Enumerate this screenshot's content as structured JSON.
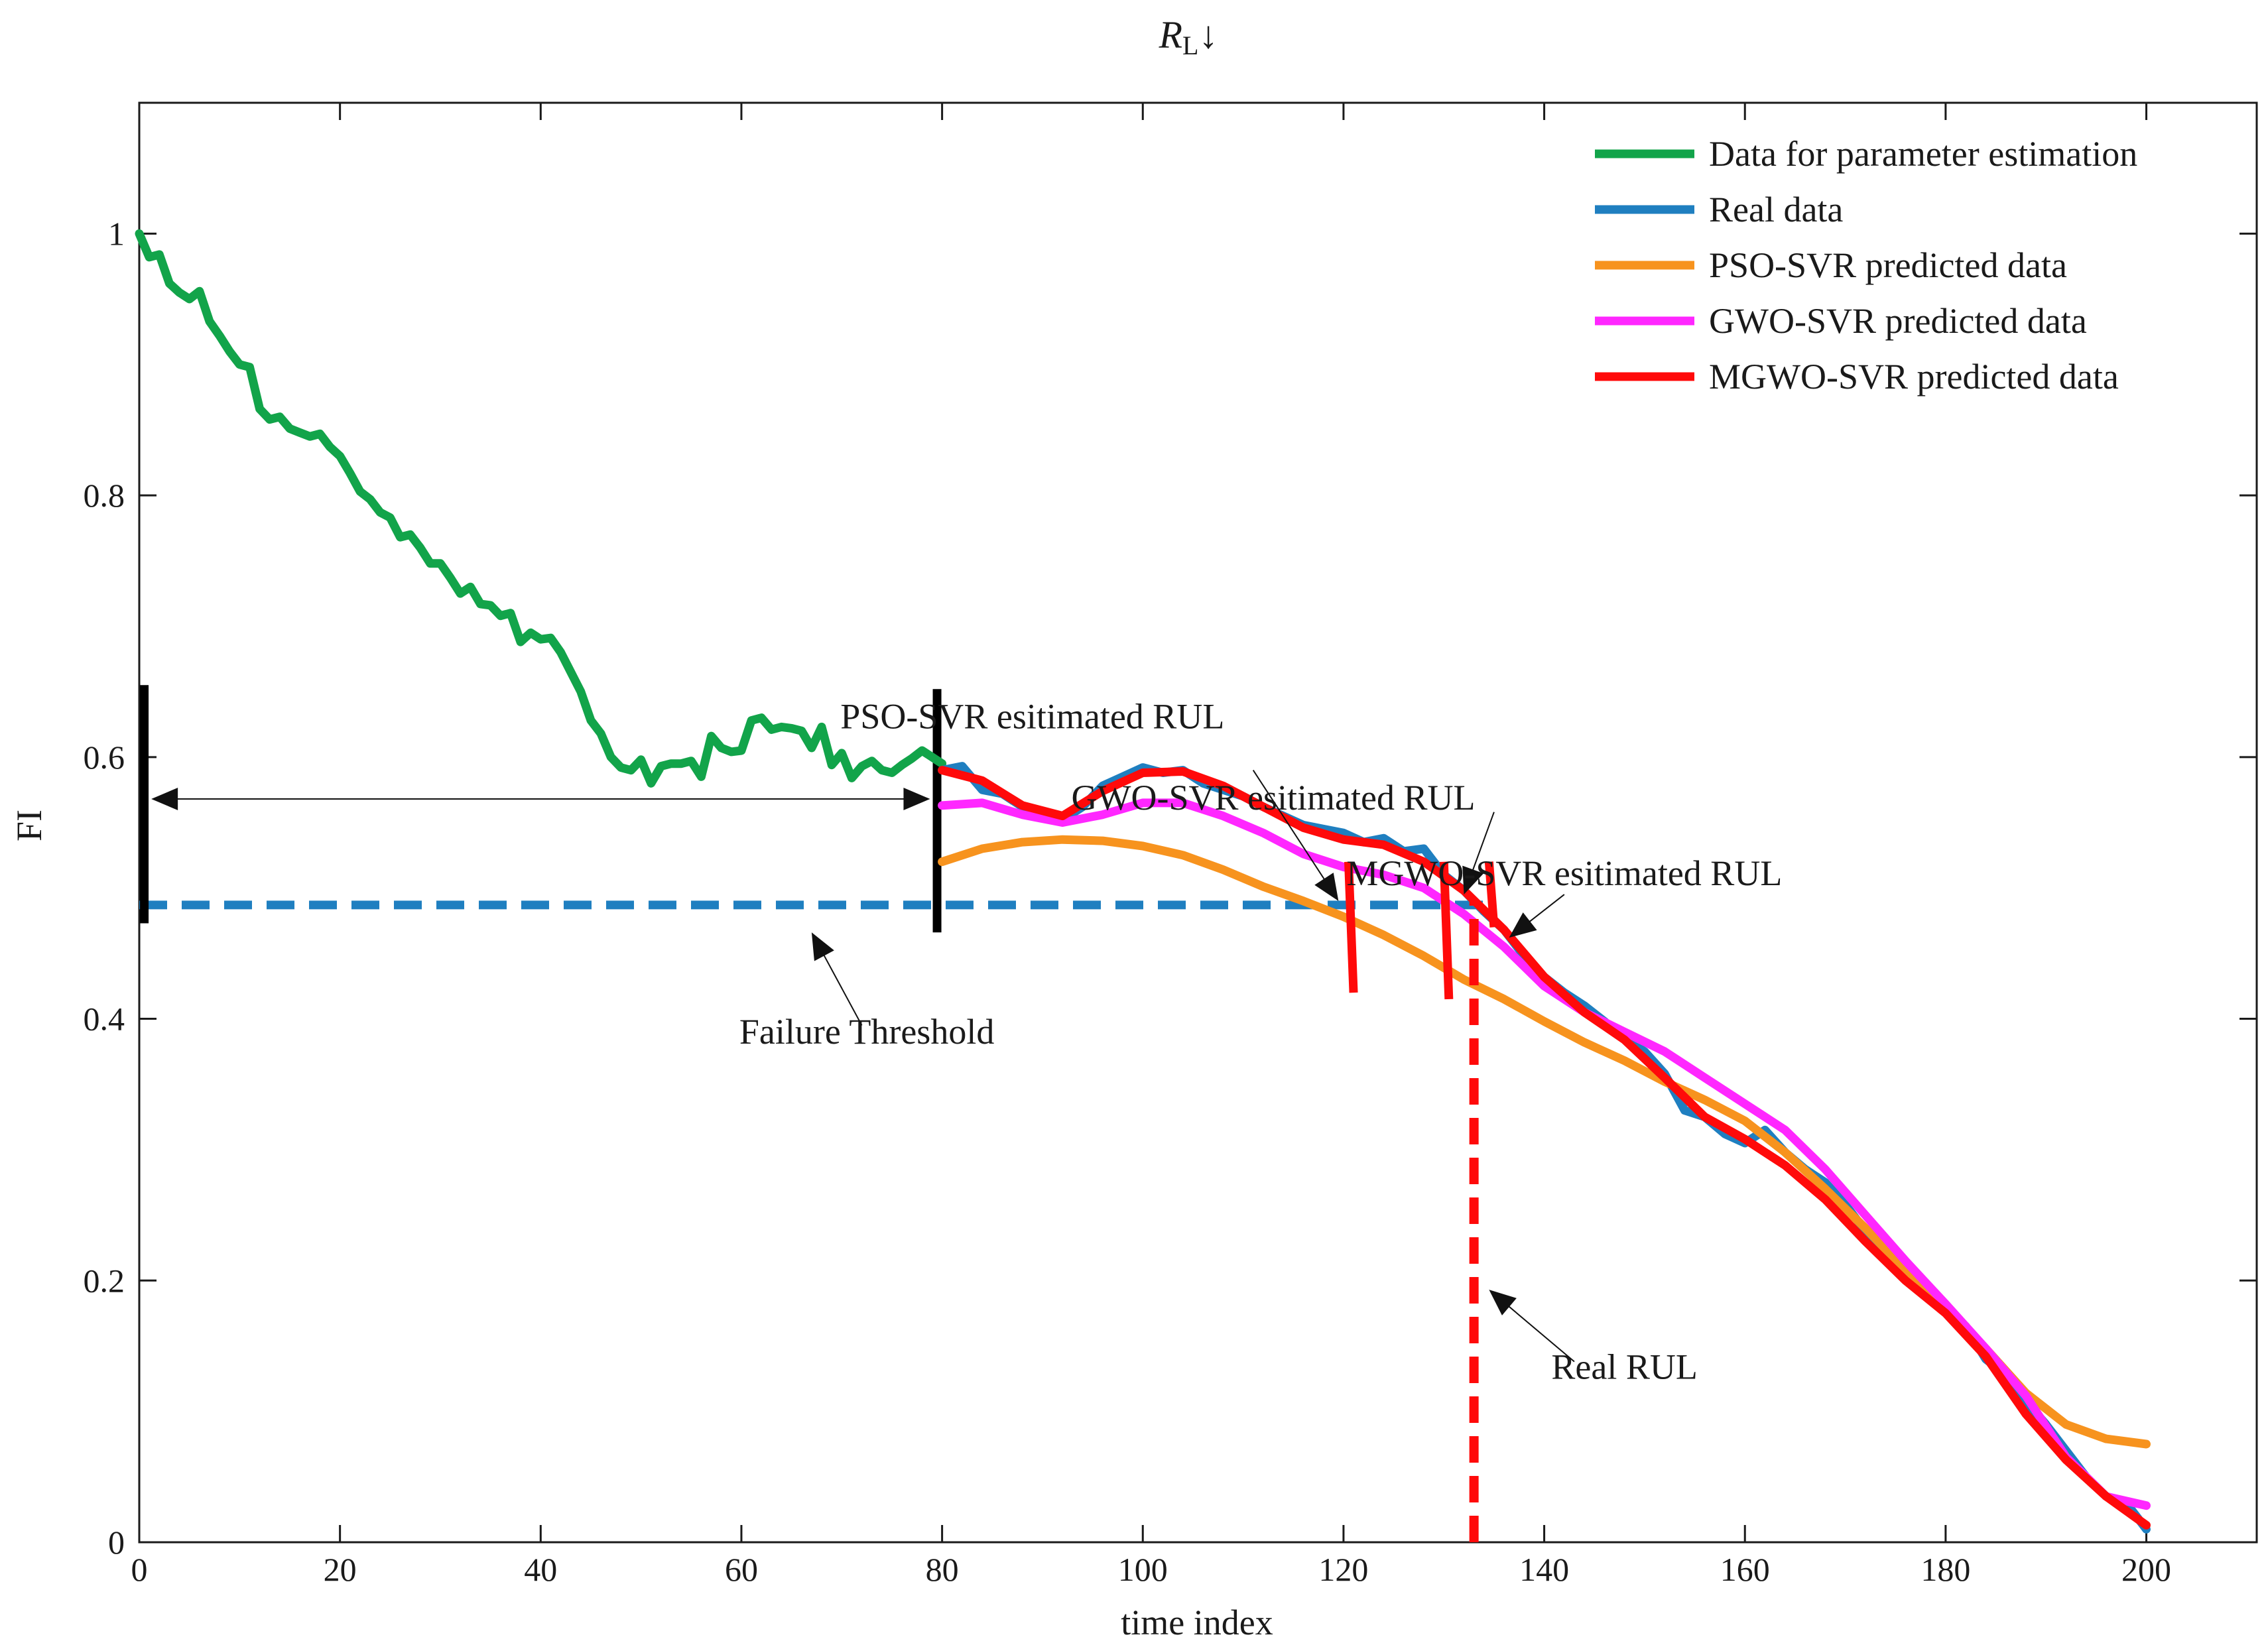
{
  "chart_data": {
    "type": "line",
    "title": "R",
    "title_subscript": "L",
    "title_suffix": "↓",
    "xlabel": "time index",
    "ylabel": "FI",
    "xlim": [
      0,
      211
    ],
    "ylim": [
      0,
      1.1
    ],
    "xticks": [
      0,
      20,
      40,
      60,
      80,
      100,
      120,
      140,
      160,
      180,
      200
    ],
    "xtick_labels": [
      "0",
      "20",
      "40",
      "60",
      "80",
      "100",
      "120",
      "140",
      "160",
      "180",
      "200"
    ],
    "yticks": [
      0,
      0.2,
      0.4,
      0.6,
      0.8,
      1
    ],
    "ytick_labels": [
      "0",
      "0.2",
      "0.4",
      "0.6",
      "0.8",
      "1"
    ],
    "grid": false,
    "legend_position": "top-right",
    "series": [
      {
        "name": "Data for parameter estimation",
        "color": "#12a44a",
        "x": [
          0,
          1,
          2,
          3,
          4,
          5,
          6,
          7,
          8,
          9,
          10,
          11,
          12,
          13,
          14,
          15,
          16,
          17,
          18,
          19,
          20,
          21,
          22,
          23,
          24,
          25,
          26,
          27,
          28,
          29,
          30,
          31,
          32,
          33,
          34,
          35,
          36,
          37,
          38,
          39,
          40,
          41,
          42,
          43,
          44,
          45,
          46,
          47,
          48,
          49,
          50,
          51,
          52,
          53,
          54,
          55,
          56,
          57,
          58,
          59,
          60,
          61,
          62,
          63,
          64,
          65,
          66,
          67,
          68,
          69,
          70,
          71,
          72,
          73,
          74,
          75,
          76,
          77,
          78,
          79,
          80
        ],
        "y": [
          1.0,
          0.982,
          0.984,
          0.962,
          0.955,
          0.95,
          0.956,
          0.933,
          0.922,
          0.91,
          0.9,
          0.898,
          0.866,
          0.858,
          0.86,
          0.851,
          0.848,
          0.845,
          0.847,
          0.837,
          0.83,
          0.817,
          0.803,
          0.797,
          0.787,
          0.783,
          0.768,
          0.77,
          0.76,
          0.748,
          0.748,
          0.737,
          0.725,
          0.73,
          0.717,
          0.716,
          0.708,
          0.71,
          0.688,
          0.695,
          0.69,
          0.691,
          0.68,
          0.665,
          0.65,
          0.628,
          0.618,
          0.6,
          0.592,
          0.59,
          0.598,
          0.58,
          0.593,
          0.595,
          0.595,
          0.597,
          0.585,
          0.616,
          0.607,
          0.604,
          0.605,
          0.628,
          0.63,
          0.621,
          0.623,
          0.622,
          0.62,
          0.607,
          0.623,
          0.594,
          0.603,
          0.584,
          0.593,
          0.597,
          0.59,
          0.588,
          0.594,
          0.599,
          0.605,
          0.6,
          0.595
        ]
      },
      {
        "name": "Real data",
        "color": "#1f7fc0",
        "x": [
          80,
          82,
          84,
          86,
          88,
          90,
          92,
          94,
          96,
          98,
          100,
          102,
          104,
          106,
          108,
          110,
          112,
          114,
          116,
          118,
          120,
          122,
          124,
          126,
          128,
          130,
          132,
          134,
          136,
          138,
          140,
          142,
          144,
          146,
          148,
          150,
          152,
          154,
          156,
          158,
          160,
          162,
          164,
          166,
          168,
          170,
          172,
          174,
          176,
          178,
          180,
          182,
          184,
          186,
          188,
          190,
          192,
          194,
          196,
          198,
          200
        ],
        "y": [
          0.59,
          0.593,
          0.575,
          0.572,
          0.562,
          0.558,
          0.552,
          0.562,
          0.578,
          0.585,
          0.592,
          0.588,
          0.59,
          0.58,
          0.575,
          0.57,
          0.562,
          0.555,
          0.548,
          0.545,
          0.542,
          0.535,
          0.538,
          0.528,
          0.53,
          0.51,
          0.498,
          0.482,
          0.468,
          0.448,
          0.432,
          0.42,
          0.41,
          0.398,
          0.385,
          0.375,
          0.358,
          0.33,
          0.325,
          0.312,
          0.305,
          0.315,
          0.298,
          0.285,
          0.275,
          0.258,
          0.238,
          0.218,
          0.205,
          0.19,
          0.178,
          0.165,
          0.14,
          0.128,
          0.108,
          0.09,
          0.07,
          0.05,
          0.035,
          0.03,
          0.01
        ]
      },
      {
        "name": "PSO-SVR predicted data",
        "color": "#f7931e",
        "x": [
          80,
          84,
          88,
          92,
          96,
          100,
          104,
          108,
          112,
          116,
          120,
          124,
          128,
          132,
          136,
          140,
          144,
          148,
          152,
          156,
          160,
          164,
          168,
          172,
          176,
          180,
          184,
          188,
          192,
          196,
          200
        ],
        "y": [
          0.52,
          0.53,
          0.535,
          0.537,
          0.536,
          0.532,
          0.525,
          0.514,
          0.501,
          0.49,
          0.478,
          0.464,
          0.448,
          0.43,
          0.415,
          0.398,
          0.382,
          0.368,
          0.352,
          0.338,
          0.322,
          0.298,
          0.27,
          0.24,
          0.208,
          0.178,
          0.148,
          0.114,
          0.09,
          0.079,
          0.075
        ]
      },
      {
        "name": "GWO-SVR predicted data",
        "color": "#ff27ff",
        "x": [
          80,
          84,
          88,
          92,
          96,
          100,
          104,
          108,
          112,
          116,
          120,
          124,
          128,
          132,
          136,
          140,
          144,
          148,
          152,
          156,
          160,
          164,
          168,
          172,
          176,
          180,
          184,
          188,
          192,
          196,
          200
        ],
        "y": [
          0.563,
          0.565,
          0.556,
          0.55,
          0.556,
          0.565,
          0.565,
          0.555,
          0.542,
          0.526,
          0.516,
          0.51,
          0.5,
          0.48,
          0.455,
          0.425,
          0.405,
          0.39,
          0.375,
          0.355,
          0.335,
          0.315,
          0.285,
          0.25,
          0.215,
          0.182,
          0.148,
          0.112,
          0.065,
          0.035,
          0.028
        ]
      },
      {
        "name": "MGWO-SVR predicted data",
        "color": "#ff0a0a",
        "x": [
          80,
          84,
          88,
          92,
          96,
          100,
          104,
          108,
          112,
          116,
          120,
          124,
          128,
          132,
          136,
          140,
          144,
          148,
          152,
          156,
          160,
          164,
          168,
          172,
          176,
          180,
          184,
          188,
          192,
          196,
          200
        ],
        "y": [
          0.59,
          0.582,
          0.563,
          0.555,
          0.574,
          0.588,
          0.589,
          0.578,
          0.562,
          0.546,
          0.537,
          0.533,
          0.52,
          0.498,
          0.468,
          0.432,
          0.405,
          0.384,
          0.355,
          0.325,
          0.308,
          0.288,
          0.262,
          0.23,
          0.2,
          0.175,
          0.142,
          0.098,
          0.063,
          0.035,
          0.013
        ]
      }
    ],
    "reference_lines": {
      "threshold": {
        "y": 0.487,
        "x_start": 0,
        "x_end": 134,
        "color": "#1f7fc0"
      },
      "estimation_start": {
        "x": 0.5,
        "y_low": 0.473,
        "y_high": 0.655,
        "color": "#000000"
      },
      "estimation_end": {
        "x": 79.5,
        "y_low": 0.466,
        "y_high": 0.652,
        "color": "#000000"
      },
      "real_rul": {
        "x": 133,
        "y_low": 0,
        "y_high": 0.49,
        "color": "#ff0a0a"
      },
      "rul_markers": [
        {
          "name": "PSO-SVR",
          "x1": 120.5,
          "y1": 0.52,
          "x2": 121,
          "y2": 0.42
        },
        {
          "name": "GWO-SVR",
          "x1": 130,
          "y1": 0.52,
          "x2": 130.5,
          "y2": 0.415
        },
        {
          "name": "MGWO-SVR",
          "x1": 134.5,
          "y1": 0.52,
          "x2": 135,
          "y2": 0.47
        }
      ]
    },
    "annotations": [
      {
        "text": "PSO-SVR esitimated RUL",
        "text_x": 89,
        "text_y": 0.622,
        "arrow_from": [
          111,
          0.59
        ],
        "arrow_to": [
          119.5,
          0.49
        ]
      },
      {
        "text": "GWO-SVR esitimated RUL",
        "text_x": 113,
        "text_y": 0.56,
        "arrow_from": [
          135,
          0.558
        ],
        "arrow_to": [
          132,
          0.495
        ]
      },
      {
        "text": "MGWO-SVR esitimated RUL",
        "text_x": 142,
        "text_y": 0.502,
        "arrow_from": [
          142,
          0.495
        ],
        "arrow_to": [
          136.5,
          0.462
        ]
      },
      {
        "text": "Failure Threshold",
        "text_x": 72.5,
        "text_y": 0.381,
        "arrow_from": [
          72,
          0.395
        ],
        "arrow_to": [
          67,
          0.466
        ]
      },
      {
        "text": "Real RUL",
        "text_x": 148,
        "text_y": 0.125,
        "arrow_from": [
          143,
          0.138
        ],
        "arrow_to": [
          134.5,
          0.193
        ]
      }
    ],
    "double_arrow": {
      "x_start": 1.2,
      "x_end": 78.8,
      "y": 0.568
    }
  }
}
